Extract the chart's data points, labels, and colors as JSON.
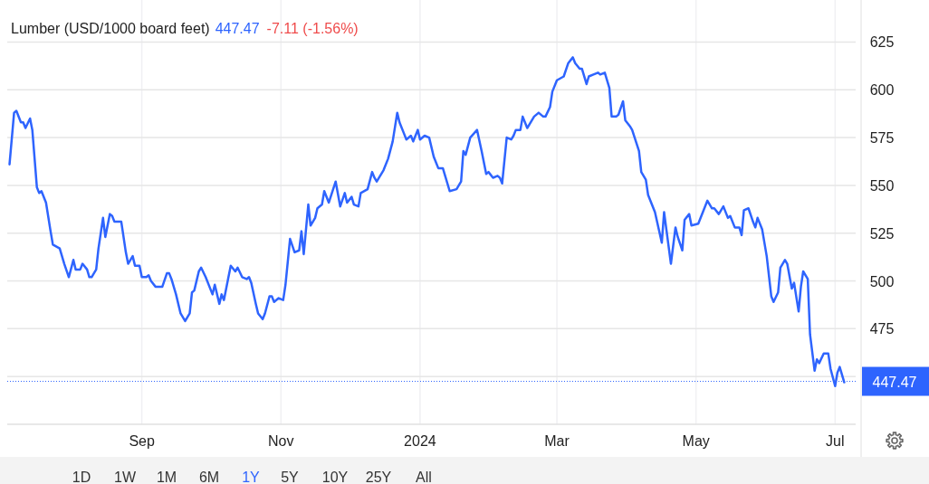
{
  "chart_data": {
    "type": "line",
    "title": "Lumber (USD/1000 board feet)",
    "annotations": [
      "447.47",
      "-7.11 (-1.56%)",
      "1D",
      "1W",
      "1M",
      "6M",
      "1Y",
      "5Y",
      "10Y",
      "25Y",
      "All"
    ],
    "xlim": [
      "2023-07-04",
      "2024-07-10"
    ],
    "xticks": [
      {
        "value": "2023-09-01",
        "label": "Sep"
      },
      {
        "value": "2023-11-01",
        "label": "Nov"
      },
      {
        "value": "2024-01-01",
        "label": "2024"
      },
      {
        "value": "2024-03-01",
        "label": "Mar"
      },
      {
        "value": "2024-05-01",
        "label": "May"
      },
      {
        "value": "2024-07-01",
        "label": "Jul"
      }
    ],
    "ylim": [
      425,
      647
    ],
    "yticks": [
      {
        "value": 450,
        "label": null
      },
      475,
      500,
      525,
      550,
      575,
      600,
      625
    ],
    "grid": true,
    "marker": "none",
    "line_style": "solid",
    "ref_lines": [
      {
        "axis": "y",
        "value": 447.47,
        "label": "447.47",
        "color": "#2e64fe",
        "line_style": "dotted"
      }
    ],
    "series": [
      {
        "color": "#2e64fe",
        "x": [
          "2023-07-05",
          "2023-07-07",
          "2023-07-08",
          "2023-07-10",
          "2023-07-11",
          "2023-07-12",
          "2023-07-14",
          "2023-07-15",
          "2023-07-17",
          "2023-07-18",
          "2023-07-19",
          "2023-07-21",
          "2023-07-23",
          "2023-07-24",
          "2023-07-27",
          "2023-07-29",
          "2023-07-31",
          "2023-08-02",
          "2023-08-03",
          "2023-08-05",
          "2023-08-06",
          "2023-08-08",
          "2023-08-09",
          "2023-08-10",
          "2023-08-12",
          "2023-08-13",
          "2023-08-15",
          "2023-08-16",
          "2023-08-18",
          "2023-08-19",
          "2023-08-20",
          "2023-08-23",
          "2023-08-25",
          "2023-08-26",
          "2023-08-28",
          "2023-08-29",
          "2023-08-31",
          "2023-09-01",
          "2023-09-03",
          "2023-09-04",
          "2023-09-05",
          "2023-09-07",
          "2023-09-08",
          "2023-09-10",
          "2023-09-12",
          "2023-09-13",
          "2023-09-14",
          "2023-09-16",
          "2023-09-18",
          "2023-09-20",
          "2023-09-22",
          "2023-09-23",
          "2023-09-24",
          "2023-09-26",
          "2023-09-27",
          "2023-09-29",
          "2023-10-02",
          "2023-10-03",
          "2023-10-05",
          "2023-10-06",
          "2023-10-07",
          "2023-10-09",
          "2023-10-10",
          "2023-10-12",
          "2023-10-13",
          "2023-10-15",
          "2023-10-17",
          "2023-10-18",
          "2023-10-19",
          "2023-10-21",
          "2023-10-22",
          "2023-10-24",
          "2023-10-25",
          "2023-10-27",
          "2023-10-28",
          "2023-10-29",
          "2023-10-31",
          "2023-11-02",
          "2023-11-03",
          "2023-11-05",
          "2023-11-07",
          "2023-11-09",
          "2023-11-10",
          "2023-11-11",
          "2023-11-13",
          "2023-11-14",
          "2023-11-16",
          "2023-11-17",
          "2023-11-19",
          "2023-11-20",
          "2023-11-22",
          "2023-11-25",
          "2023-11-27",
          "2023-11-29",
          "2023-11-30",
          "2023-12-02",
          "2023-12-03",
          "2023-12-05",
          "2023-12-06",
          "2023-12-09",
          "2023-12-11",
          "2023-12-12",
          "2023-12-13",
          "2023-12-16",
          "2023-12-18",
          "2023-12-20",
          "2023-12-22",
          "2023-12-23",
          "2023-12-25",
          "2023-12-26",
          "2023-12-28",
          "2023-12-29",
          "2023-12-31",
          "2024-01-01",
          "2024-01-03",
          "2024-01-05",
          "2024-01-07",
          "2024-01-09",
          "2024-01-11",
          "2024-01-12",
          "2024-01-14",
          "2024-01-17",
          "2024-01-19",
          "2024-01-20",
          "2024-01-21",
          "2024-01-23",
          "2024-01-26",
          "2024-01-28",
          "2024-01-30",
          "2024-01-31",
          "2024-02-02",
          "2024-02-04",
          "2024-02-05",
          "2024-02-06",
          "2024-02-08",
          "2024-02-10",
          "2024-02-11",
          "2024-02-12",
          "2024-02-14",
          "2024-02-15",
          "2024-02-17",
          "2024-02-18",
          "2024-02-20",
          "2024-02-22",
          "2024-02-24",
          "2024-02-25",
          "2024-02-27",
          "2024-02-28",
          "2024-03-01",
          "2024-03-04",
          "2024-03-06",
          "2024-03-08",
          "2024-03-09",
          "2024-03-11",
          "2024-03-12",
          "2024-03-14",
          "2024-03-15",
          "2024-03-17",
          "2024-03-19",
          "2024-03-20",
          "2024-03-22",
          "2024-03-24",
          "2024-03-25",
          "2024-03-27",
          "2024-03-28",
          "2024-03-30",
          "2024-03-31",
          "2024-04-02",
          "2024-04-03",
          "2024-04-06",
          "2024-04-07",
          "2024-04-09",
          "2024-04-10",
          "2024-04-13",
          "2024-04-16",
          "2024-04-17",
          "2024-04-20",
          "2024-04-22",
          "2024-04-23",
          "2024-04-25",
          "2024-04-26",
          "2024-04-28",
          "2024-04-29",
          "2024-05-02",
          "2024-05-04",
          "2024-05-06",
          "2024-05-08",
          "2024-05-09",
          "2024-05-11",
          "2024-05-12",
          "2024-05-13",
          "2024-05-15",
          "2024-05-16",
          "2024-05-18",
          "2024-05-20",
          "2024-05-21",
          "2024-05-22",
          "2024-05-24",
          "2024-05-26",
          "2024-05-27",
          "2024-05-28",
          "2024-05-30",
          "2024-06-01",
          "2024-06-03",
          "2024-06-04",
          "2024-06-06",
          "2024-06-07",
          "2024-06-09",
          "2024-06-10",
          "2024-06-12",
          "2024-06-13",
          "2024-06-15",
          "2024-06-16",
          "2024-06-17",
          "2024-06-19",
          "2024-06-20",
          "2024-06-22",
          "2024-06-23",
          "2024-06-24",
          "2024-06-26",
          "2024-06-28",
          "2024-06-29",
          "2024-07-01",
          "2024-07-02",
          "2024-07-03",
          "2024-07-05"
        ],
        "values": [
          561,
          588,
          589,
          583,
          583,
          580,
          585,
          579,
          549,
          546,
          547,
          541,
          526,
          519,
          517,
          509,
          502,
          511,
          506,
          506,
          509,
          506,
          502,
          502,
          506,
          517,
          533,
          523,
          535,
          534,
          531,
          531,
          515,
          509,
          513,
          508,
          508,
          502,
          502,
          503,
          500,
          497,
          497,
          497,
          504,
          504,
          501,
          493,
          483,
          479,
          483,
          494,
          495,
          505,
          507,
          502,
          493,
          498,
          488,
          493,
          490,
          502,
          508,
          505,
          507,
          502,
          501,
          502,
          499,
          488,
          483,
          480,
          483,
          492,
          492,
          489,
          491,
          490,
          498,
          522,
          515,
          516,
          526,
          514,
          540,
          529,
          533,
          538,
          540,
          547,
          541,
          552,
          539,
          546,
          541,
          544,
          540,
          539,
          546,
          548,
          557,
          554,
          552,
          558,
          564,
          573,
          588,
          583,
          577,
          574,
          576,
          573,
          579,
          574,
          576,
          575,
          565,
          559,
          559,
          555,
          547,
          548,
          552,
          568,
          566,
          575,
          579,
          568,
          556,
          557,
          554,
          555,
          554,
          551,
          575,
          574,
          576,
          579,
          579,
          586,
          580,
          582,
          586,
          588,
          586,
          586,
          591,
          599,
          605,
          607,
          614,
          617,
          614,
          611,
          611,
          603,
          607,
          608,
          609,
          608,
          609,
          601,
          586,
          586,
          587,
          594,
          584,
          581,
          579,
          568,
          557,
          553,
          545,
          536,
          520,
          536,
          509,
          528,
          523,
          516,
          532,
          535,
          529,
          530,
          536,
          542,
          538,
          538,
          535,
          537,
          539,
          533,
          534,
          528,
          528,
          524,
          537,
          538,
          531,
          528,
          533,
          527,
          513,
          492,
          489,
          494,
          507,
          511,
          509,
          496,
          499,
          484,
          497,
          505,
          501,
          472,
          453,
          459,
          457,
          462,
          462,
          454,
          445,
          452,
          455,
          447
        ]
      }
    ]
  }
}
